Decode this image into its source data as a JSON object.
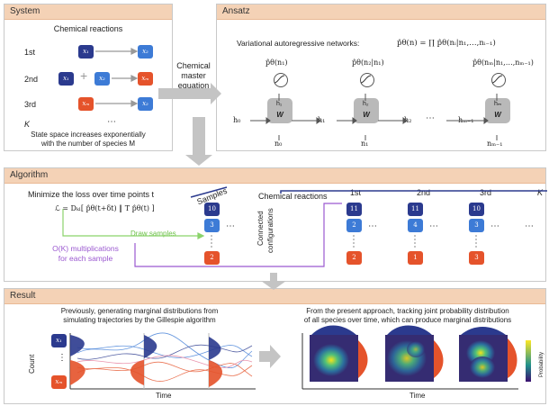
{
  "system": {
    "title": "System",
    "subtitle": "Chemical reactions",
    "rows": [
      {
        "label": "1st",
        "reactants": [
          "x₁"
        ],
        "products": [
          "x₂"
        ]
      },
      {
        "label": "2nd",
        "reactants": [
          "x₁",
          "x₂"
        ],
        "products": [
          "xₘ"
        ]
      },
      {
        "label": "3rd",
        "reactants": [
          "xₘ"
        ],
        "products": [
          "x₂"
        ]
      },
      {
        "label": "K",
        "reactants": [],
        "products": []
      }
    ],
    "plus": "+",
    "ellipsis": "⋯",
    "note_line1": "State space increases exponentially",
    "note_line2": "with the number of species M"
  },
  "cme": {
    "line1": "Chemical",
    "line2": "master",
    "line3": "equation"
  },
  "ansatz": {
    "title": "Ansatz",
    "heading": "Variational autoregressive networks:",
    "formula": "p̂θ(n) = ∏ p̂θ(nᵢ|n₁,…,nᵢ₋₁)",
    "outputs": [
      "p̂θ(n₁)",
      "p̂θ(n₂|n₁)",
      "p̂θ(nₘ|n₁,…,nₘ₋₁)"
    ],
    "weight": "W",
    "hidden_in": [
      "h₀",
      "h₁",
      "h₂",
      "hₘ₋₁"
    ],
    "hidden_cell": [
      "h₁",
      "h₂",
      "hₘ"
    ],
    "inputs": [
      "n₀",
      "n₁",
      "nₘ₋₁"
    ],
    "ellipsis": "⋯"
  },
  "algorithm": {
    "title": "Algorithm",
    "loss_text": "Minimize the loss over time points t",
    "loss_formula": "ℒ = Dₖₗ[ p̂θ(t+δt) ‖ T p̂θ(t) ]",
    "samples_label": "Samples",
    "draw_label": "Draw samples",
    "complexity_line1": "O(K) multiplications",
    "complexity_line2": "for each sample",
    "sample_values": [
      "10",
      "3",
      "2"
    ],
    "reactions_label": "Chemical reactions",
    "reaction_headers": [
      "1st",
      "2nd",
      "3rd",
      "K"
    ],
    "connected_label_1": "Connected",
    "connected_label_2": "configurations",
    "columns": [
      {
        "top": "11",
        "mid": "2",
        "bottom": "2"
      },
      {
        "top": "11",
        "mid": "4",
        "bottom": "1"
      },
      {
        "top": "10",
        "mid": "3",
        "bottom": "3"
      }
    ],
    "ellipsis": "⋯"
  },
  "result": {
    "title": "Result",
    "left_line1": "Previously, generating marginal distributions from",
    "left_line2": "simulating trajectories by the Gillespie algorithm",
    "right_line1": "From the present approach, tracking joint probability distribution",
    "right_line2": "of all species over time, which can produce marginal distributions",
    "ylabel": "Count",
    "xlabel_left": "Time",
    "xlabel_right": "Time",
    "species": [
      "x₁",
      "xₘ"
    ],
    "colorbar_label": "Probability",
    "ellipsis": "⋮"
  },
  "colors": {
    "header": "#f4d2b6",
    "blue": "#3d7bd6",
    "navy": "#2b3a8e",
    "orange": "#e5532b",
    "green": "#8bd36b",
    "purple": "#9b59d0"
  }
}
